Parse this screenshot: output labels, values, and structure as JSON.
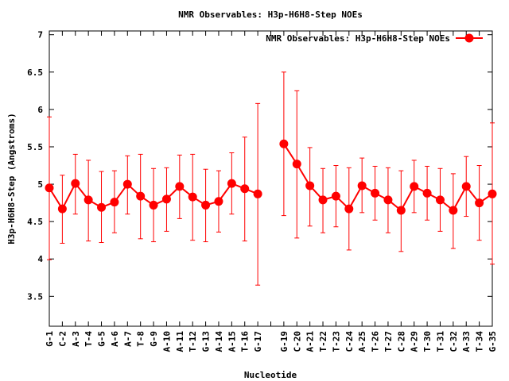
{
  "chart_data": {
    "type": "line",
    "title": "NMR Observables: H3p-H6H8-Step NOEs",
    "xlabel": "Nucleotide",
    "ylabel": "H3p-H6H8-Step (Angstroms)",
    "ylim": [
      3.1,
      7.05
    ],
    "yticks": [
      3.5,
      4,
      4.5,
      5,
      5.5,
      6,
      6.5,
      7
    ],
    "grid": false,
    "legend_position": "top-right",
    "series_color": "#ff0000",
    "categories": [
      "G-1",
      "C-2",
      "A-3",
      "T-4",
      "G-5",
      "A-6",
      "A-7",
      "T-8",
      "G-9",
      "A-10",
      "A-11",
      "T-12",
      "G-13",
      "A-14",
      "A-15",
      "T-16",
      "G-17",
      "",
      "G-19",
      "C-20",
      "A-21",
      "T-22",
      "T-23",
      "C-24",
      "A-25",
      "T-26",
      "T-27",
      "C-28",
      "A-29",
      "T-30",
      "T-31",
      "C-32",
      "A-33",
      "T-34",
      "G-35"
    ],
    "series": [
      {
        "name": "NMR Observables: H3p-H6H8-Step NOEs",
        "values": [
          4.95,
          4.67,
          5.01,
          4.79,
          4.69,
          4.76,
          5.0,
          4.84,
          4.72,
          4.8,
          4.97,
          4.83,
          4.72,
          4.77,
          5.01,
          4.94,
          4.87,
          null,
          5.54,
          5.27,
          4.98,
          4.79,
          4.84,
          4.67,
          4.98,
          4.88,
          4.79,
          4.65,
          4.97,
          4.88,
          4.79,
          4.65,
          4.97,
          4.75,
          4.87
        ],
        "err_low": [
          3.99,
          4.21,
          4.6,
          4.24,
          4.22,
          4.35,
          4.6,
          4.27,
          4.23,
          4.37,
          4.54,
          4.25,
          4.23,
          4.36,
          4.6,
          4.24,
          3.65,
          null,
          4.58,
          4.28,
          4.44,
          4.35,
          4.43,
          4.12,
          4.62,
          4.52,
          4.35,
          4.1,
          4.62,
          4.52,
          4.37,
          4.14,
          4.57,
          4.25,
          3.93
        ],
        "err_high": [
          5.9,
          5.12,
          5.4,
          5.32,
          5.17,
          5.18,
          5.38,
          5.4,
          5.21,
          5.22,
          5.39,
          5.4,
          5.2,
          5.18,
          5.42,
          5.63,
          6.08,
          null,
          6.5,
          6.25,
          5.49,
          5.21,
          5.25,
          5.22,
          5.35,
          5.24,
          5.22,
          5.18,
          5.32,
          5.24,
          5.21,
          5.14,
          5.37,
          5.25,
          5.82
        ]
      }
    ]
  }
}
